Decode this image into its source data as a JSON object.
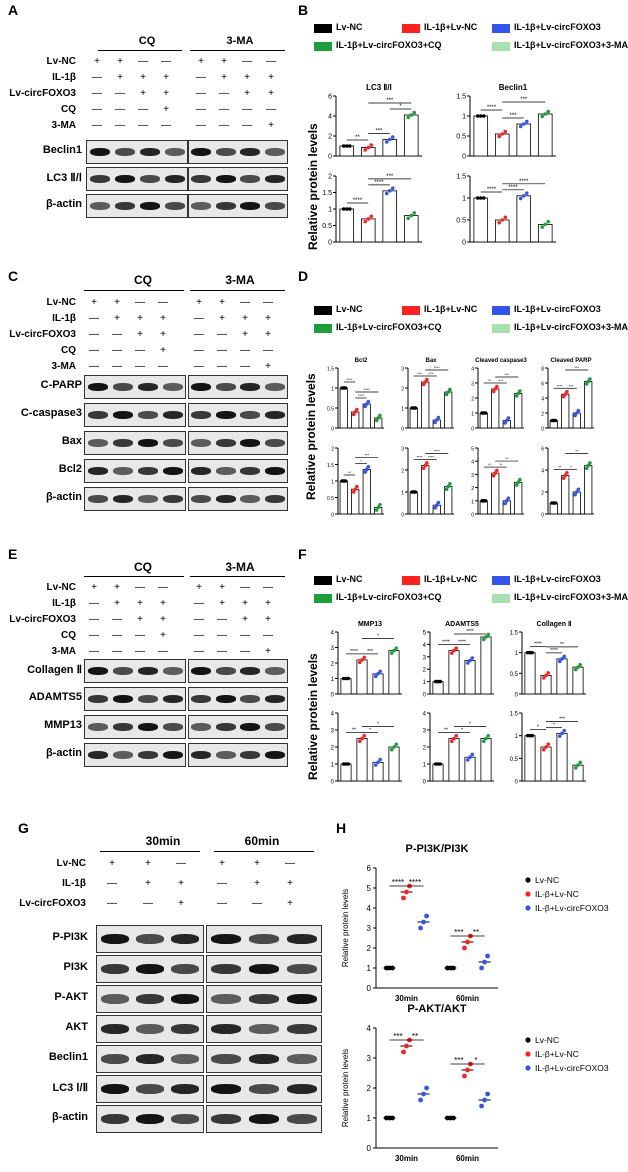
{
  "panels": {
    "A": {
      "label": "A",
      "group_headers": [
        "CQ",
        "3-MA"
      ],
      "rows": [
        {
          "name": "Lv-NC",
          "signs": [
            "+",
            "+",
            "—",
            "—",
            "+",
            "+",
            "—",
            "—"
          ]
        },
        {
          "name": "IL-1β",
          "signs": [
            "—",
            "+",
            "+",
            "+",
            "—",
            "+",
            "+",
            "+"
          ]
        },
        {
          "name": "Lv-circFOXO3",
          "signs": [
            "—",
            "—",
            "+",
            "+",
            "—",
            "—",
            "+",
            "+"
          ]
        },
        {
          "name": "CQ",
          "signs": [
            "—",
            "—",
            "—",
            "+",
            "—",
            "—",
            "—",
            "—"
          ]
        },
        {
          "name": "3-MA",
          "signs": [
            "—",
            "—",
            "—",
            "—",
            "—",
            "—",
            "—",
            "+"
          ]
        }
      ],
      "blots": [
        "Beclin1",
        "LC3 Ⅱ/Ⅰ",
        "β-actin"
      ]
    },
    "B": {
      "label": "B",
      "legend": [
        "Lv-NC",
        "IL-1β+Lv-NC",
        "IL-1β+Lv-circFOXO3",
        "IL-1β+Lv-circFOXO3+CQ",
        "IL-1β+Lv-circFOXO3+3-MA"
      ],
      "ylabel": "Relative protein levels",
      "subtitles": [
        "LC3 Ⅱ/Ⅰ",
        "Beclin1"
      ]
    },
    "C": {
      "label": "C",
      "group_headers": [
        "CQ",
        "3-MA"
      ],
      "rows": [
        {
          "name": "Lv-NC",
          "signs": [
            "+",
            "+",
            "—",
            "—",
            "+",
            "+",
            "—",
            "—"
          ]
        },
        {
          "name": "IL-1β",
          "signs": [
            "—",
            "+",
            "+",
            "+",
            "—",
            "+",
            "+",
            "+"
          ]
        },
        {
          "name": "Lv-circFOXO3",
          "signs": [
            "—",
            "—",
            "+",
            "+",
            "—",
            "—",
            "+",
            "+"
          ]
        },
        {
          "name": "CQ",
          "signs": [
            "—",
            "—",
            "—",
            "+",
            "—",
            "—",
            "—",
            "—"
          ]
        },
        {
          "name": "3-MA",
          "signs": [
            "—",
            "—",
            "—",
            "—",
            "—",
            "—",
            "—",
            "+"
          ]
        }
      ],
      "blots": [
        "C-PARP",
        "C-caspase3",
        "Bax",
        "Bcl2",
        "β-actin"
      ]
    },
    "D": {
      "label": "D",
      "legend": [
        "Lv-NC",
        "IL-1β+Lv-NC",
        "IL-1β+Lv-circFOXO3",
        "IL-1β+Lv-circFOXO3+CQ",
        "IL-1β+Lv-circFOXO3+3-MA"
      ],
      "ylabel": "Relative protein levels",
      "subtitles": [
        "Bcl2",
        "Bax",
        "Cleaved caspase3",
        "Cleaved PARP"
      ]
    },
    "E": {
      "label": "E",
      "group_headers": [
        "CQ",
        "3-MA"
      ],
      "rows": [
        {
          "name": "Lv-NC",
          "signs": [
            "+",
            "+",
            "—",
            "—",
            "+",
            "+",
            "—",
            "—"
          ]
        },
        {
          "name": "IL-1β",
          "signs": [
            "—",
            "+",
            "+",
            "+",
            "—",
            "+",
            "+",
            "+"
          ]
        },
        {
          "name": "Lv-circFOXO3",
          "signs": [
            "—",
            "—",
            "+",
            "+",
            "—",
            "—",
            "+",
            "+"
          ]
        },
        {
          "name": "CQ",
          "signs": [
            "—",
            "—",
            "—",
            "+",
            "—",
            "—",
            "—",
            "—"
          ]
        },
        {
          "name": "3-MA",
          "signs": [
            "—",
            "—",
            "—",
            "—",
            "—",
            "—",
            "—",
            "+"
          ]
        }
      ],
      "blots": [
        "Collagen Ⅱ",
        "ADAMTS5",
        "MMP13",
        "β-actin"
      ]
    },
    "F": {
      "label": "F",
      "legend": [
        "Lv-NC",
        "IL-1β+Lv-NC",
        "IL-1β+Lv-circFOXO3",
        "IL-1β+Lv-circFOXO3+CQ",
        "IL-1β+Lv-circFOXO3+3-MA"
      ],
      "ylabel": "Relative protein levels",
      "subtitles": [
        "MMP13",
        "ADAMTS5",
        "Collagen Ⅱ"
      ]
    },
    "G": {
      "label": "G",
      "group_headers": [
        "30min",
        "60min"
      ],
      "rows": [
        {
          "name": "Lv-NC",
          "signs": [
            "+",
            "+",
            "—",
            "+",
            "+",
            "—"
          ]
        },
        {
          "name": "IL-1β",
          "signs": [
            "—",
            "+",
            "+",
            "—",
            "+",
            "+"
          ]
        },
        {
          "name": "Lv-circFOXO3",
          "signs": [
            "—",
            "—",
            "+",
            "—",
            "—",
            "+"
          ]
        }
      ],
      "blots": [
        "P-PI3K",
        "PI3K",
        "P-AKT",
        "AKT",
        "Beclin1",
        "LC3 Ⅰ/Ⅱ",
        "β-actin"
      ]
    },
    "H": {
      "label": "H",
      "legend": [
        "Lv-NC",
        "IL-β+Lv-NC",
        "IL-β+Lv-circFOXO3"
      ]
    }
  },
  "colors": {
    "black": "#000000",
    "red": "#ff2020",
    "blue": "#3355ee",
    "green": "#1e9e3a",
    "lightgreen": "#a8e0b0"
  },
  "chart_data": [
    {
      "type": "bar",
      "panel": "B",
      "title": "LC3 Ⅱ/Ⅰ",
      "values": [
        1.0,
        0.85,
        1.65,
        4.1
      ],
      "ylim": [
        0,
        6
      ],
      "yticks": [
        0,
        2,
        4,
        6
      ],
      "sig": [
        "**",
        "***",
        "***",
        "*"
      ]
    },
    {
      "type": "bar",
      "panel": "B",
      "title": "Beclin1",
      "values": [
        1.0,
        0.55,
        0.8,
        1.05
      ],
      "ylim": [
        0,
        1.5
      ],
      "yticks": [
        0.0,
        0.5,
        1.0,
        1.5
      ],
      "sig": [
        "****",
        "***",
        "***"
      ]
    },
    {
      "type": "bar",
      "panel": "B",
      "title": "",
      "values": [
        1.0,
        0.7,
        1.55,
        0.8
      ],
      "ylim": [
        0,
        2.0
      ],
      "yticks": [
        0.0,
        0.5,
        1.0,
        1.5,
        2.0
      ],
      "sig": [
        "****",
        "****",
        "***"
      ]
    },
    {
      "type": "bar",
      "panel": "B",
      "title": "",
      "values": [
        1.0,
        0.5,
        1.05,
        0.4
      ],
      "ylim": [
        0,
        1.5
      ],
      "yticks": [
        0.0,
        0.5,
        1.0,
        1.5
      ],
      "sig": [
        "****",
        "****",
        "****"
      ]
    },
    {
      "type": "bar",
      "panel": "D",
      "title": "Bcl2",
      "values": [
        1.0,
        0.4,
        0.6,
        0.25
      ],
      "ylim": [
        0,
        1.5
      ],
      "yticks": [
        0.0,
        0.5,
        1.0,
        1.5
      ],
      "sig": [
        "****",
        "****",
        "****"
      ]
    },
    {
      "type": "bar",
      "panel": "D",
      "title": "Bax",
      "values": [
        1.0,
        2.3,
        0.4,
        1.8
      ],
      "ylim": [
        0,
        3
      ],
      "yticks": [
        0,
        1,
        2,
        3
      ],
      "sig": [
        "***",
        "***",
        "****"
      ]
    },
    {
      "type": "bar",
      "panel": "D",
      "title": "Cleaved caspase3",
      "values": [
        1.0,
        2.6,
        0.5,
        2.3
      ],
      "ylim": [
        0,
        4
      ],
      "yticks": [
        0,
        1,
        2,
        3,
        4
      ],
      "sig": [
        "**",
        "***",
        "***"
      ]
    },
    {
      "type": "bar",
      "panel": "D",
      "title": "Cleaved PARP",
      "values": [
        1.0,
        4.5,
        2.0,
        6.2
      ],
      "ylim": [
        0,
        8
      ],
      "yticks": [
        0,
        2,
        4,
        6,
        8
      ],
      "sig": [
        "****",
        "***",
        "***"
      ]
    },
    {
      "type": "bar",
      "panel": "D",
      "title": "",
      "values": [
        1.0,
        0.75,
        1.35,
        0.2
      ],
      "ylim": [
        0,
        2.0
      ],
      "yticks": [
        0.0,
        0.5,
        1.0,
        1.5,
        2.0
      ],
      "sig": [
        "**",
        "*",
        "***"
      ]
    },
    {
      "type": "bar",
      "panel": "D",
      "title": "",
      "values": [
        1.0,
        2.2,
        0.4,
        1.25
      ],
      "ylim": [
        0,
        3
      ],
      "yticks": [
        0,
        1,
        2,
        3
      ],
      "sig": [
        "****",
        "****",
        "****"
      ]
    },
    {
      "type": "bar",
      "panel": "D",
      "title": "",
      "values": [
        1.0,
        3.1,
        1.0,
        2.4
      ],
      "ylim": [
        0,
        5
      ],
      "yticks": [
        0,
        1,
        2,
        3,
        4,
        5
      ],
      "sig": [
        "**",
        "**",
        "**"
      ]
    },
    {
      "type": "bar",
      "panel": "D",
      "title": "",
      "values": [
        1.0,
        3.5,
        2.0,
        4.4
      ],
      "ylim": [
        0,
        6
      ],
      "yticks": [
        0,
        2,
        4,
        6
      ],
      "sig": [
        "**",
        "*",
        "**"
      ]
    },
    {
      "type": "bar",
      "panel": "F",
      "title": "MMP13",
      "values": [
        1.0,
        2.2,
        1.3,
        2.8
      ],
      "ylim": [
        0,
        4
      ],
      "yticks": [
        0,
        1,
        2,
        3,
        4
      ],
      "sig": [
        "****",
        "***",
        "*"
      ]
    },
    {
      "type": "bar",
      "panel": "F",
      "title": "ADAMTS5",
      "values": [
        1.0,
        3.5,
        2.7,
        4.6
      ],
      "ylim": [
        0,
        5
      ],
      "yticks": [
        0,
        1,
        2,
        3,
        4,
        5
      ],
      "sig": [
        "****",
        "****",
        "****"
      ]
    },
    {
      "type": "bar",
      "panel": "F",
      "title": "Collagen Ⅱ",
      "values": [
        1.0,
        0.45,
        0.85,
        0.65
      ],
      "ylim": [
        0,
        1.5
      ],
      "yticks": [
        0.0,
        0.5,
        1.0,
        1.5
      ],
      "sig": [
        "****",
        "****",
        "**"
      ]
    },
    {
      "type": "bar",
      "panel": "F",
      "title": "",
      "values": [
        1.0,
        2.5,
        1.1,
        2.0
      ],
      "ylim": [
        0,
        4
      ],
      "yticks": [
        0,
        1,
        2,
        3,
        4
      ],
      "sig": [
        "**",
        "*",
        "*"
      ]
    },
    {
      "type": "bar",
      "panel": "F",
      "title": "",
      "values": [
        1.0,
        2.5,
        1.4,
        2.5
      ],
      "ylim": [
        0,
        4
      ],
      "yticks": [
        0,
        1,
        2,
        3,
        4
      ],
      "sig": [
        "**",
        "*",
        "*"
      ]
    },
    {
      "type": "bar",
      "panel": "F",
      "title": "",
      "values": [
        1.0,
        0.75,
        1.05,
        0.35
      ],
      "ylim": [
        0,
        1.5
      ],
      "yticks": [
        0.0,
        0.5,
        1.0,
        1.5
      ],
      "sig": [
        "*",
        "*",
        "***"
      ]
    },
    {
      "type": "scatter",
      "panel": "H",
      "title": "P-PI3K/PI3K",
      "ylabel": "Relative protein levels",
      "categories": [
        "30min",
        "60min"
      ],
      "ylim": [
        0,
        6
      ],
      "yticks": [
        0,
        1,
        2,
        3,
        4,
        5,
        6
      ],
      "series": [
        {
          "name": "Lv-NC",
          "values": [
            1.0,
            1.0
          ]
        },
        {
          "name": "IL-β+Lv-NC",
          "values": [
            4.8,
            2.3
          ]
        },
        {
          "name": "IL-β+Lv-circFOXO3",
          "values": [
            3.3,
            1.3
          ]
        }
      ],
      "sig": [
        "****",
        "****",
        "***",
        "**"
      ]
    },
    {
      "type": "scatter",
      "panel": "H",
      "title": "P-AKT/AKT",
      "ylabel": "Relative protein levels",
      "categories": [
        "30min",
        "60min"
      ],
      "ylim": [
        0,
        4
      ],
      "yticks": [
        0,
        1,
        2,
        3,
        4
      ],
      "series": [
        {
          "name": "Lv-NC",
          "values": [
            1.0,
            1.0
          ]
        },
        {
          "name": "IL-β+Lv-NC",
          "values": [
            3.4,
            2.6
          ]
        },
        {
          "name": "IL-β+Lv-circFOXO3",
          "values": [
            1.8,
            1.6
          ]
        }
      ],
      "sig": [
        "***",
        "**",
        "***",
        "*"
      ]
    }
  ]
}
